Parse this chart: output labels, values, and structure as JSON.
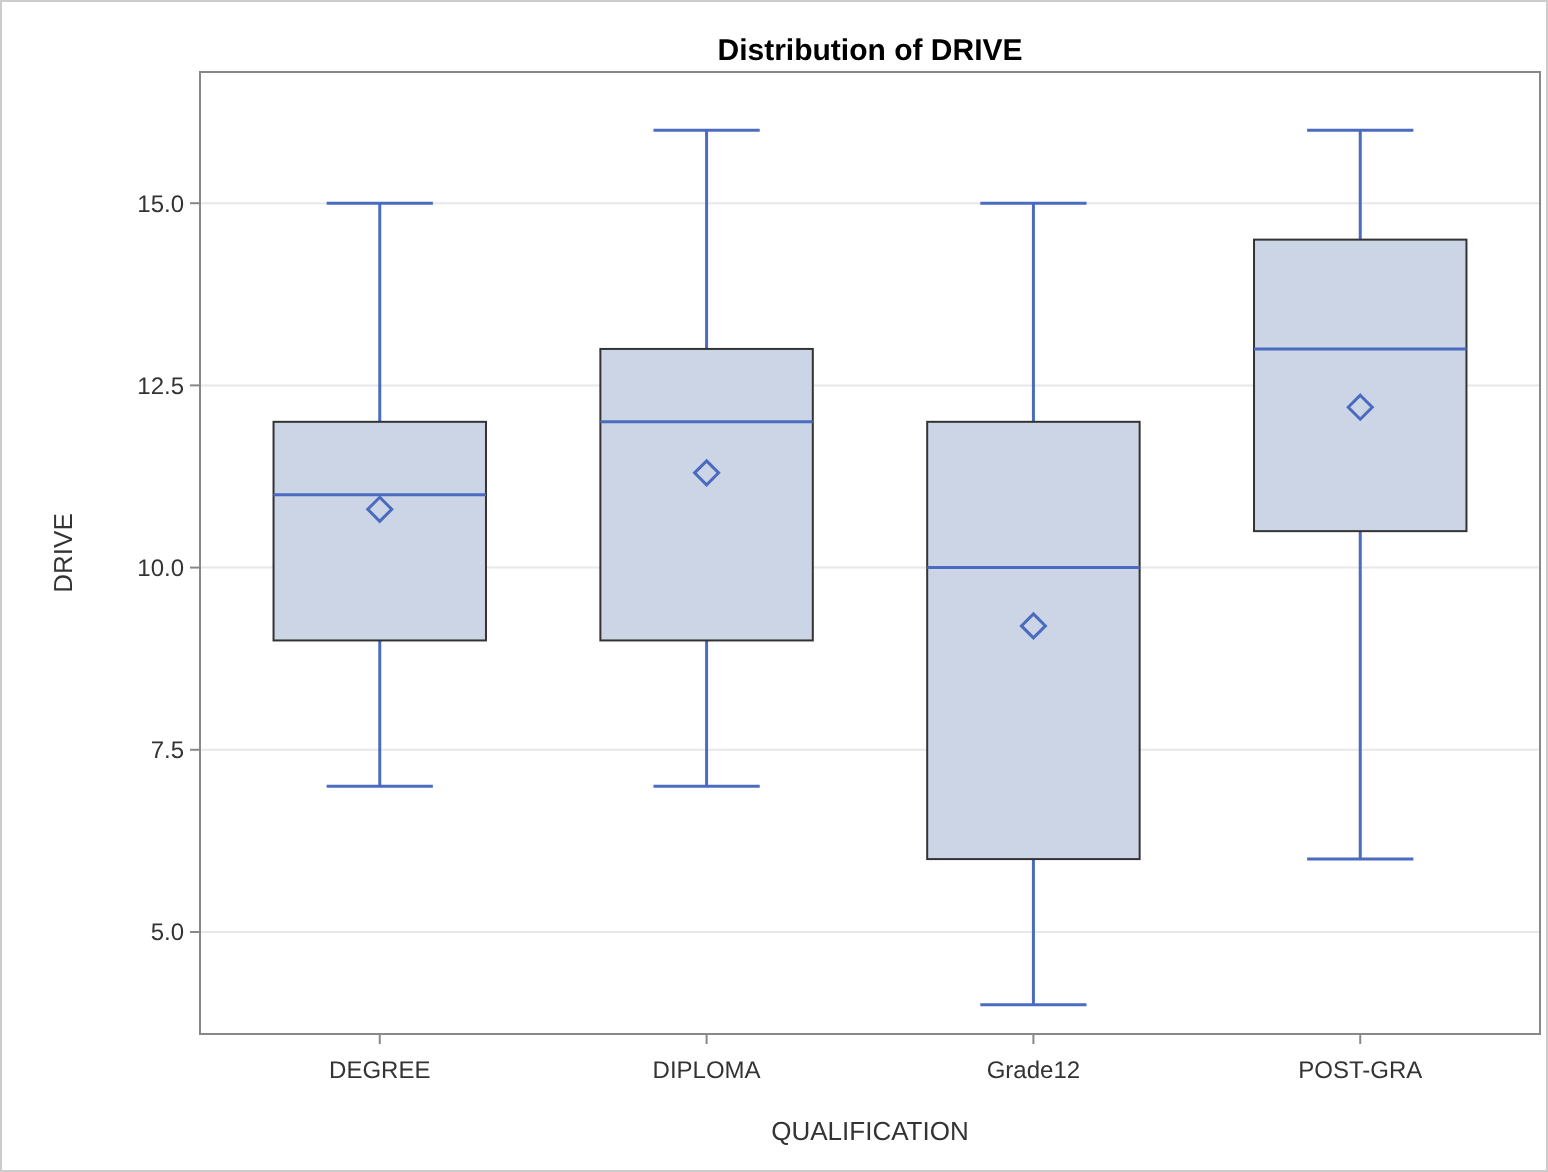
{
  "chart_data": {
    "type": "box",
    "title": "Distribution of DRIVE",
    "xlabel": "QUALIFICATION",
    "ylabel": "DRIVE",
    "categories": [
      "DEGREE",
      "DIPLOMA",
      "Grade12",
      "POST-GRA"
    ],
    "boxes": [
      {
        "low": 7,
        "q1": 9,
        "median": 11,
        "q3": 12,
        "high": 15,
        "mean": 10.8
      },
      {
        "low": 7,
        "q1": 9,
        "median": 12,
        "q3": 13,
        "high": 16,
        "mean": 11.3
      },
      {
        "low": 4,
        "q1": 6,
        "median": 10,
        "q3": 12,
        "high": 15,
        "mean": 9.2
      },
      {
        "low": 6,
        "q1": 10.5,
        "median": 13,
        "q3": 14.5,
        "high": 16,
        "mean": 12.2
      }
    ],
    "color": "#cbd5e5",
    "ylim": [
      3.6,
      16.8
    ],
    "yticks": [
      {
        "value": 5,
        "label": "5.0"
      },
      {
        "value": 7.5,
        "label": "7.5"
      },
      {
        "value": 10,
        "label": "10.0"
      },
      {
        "value": 12.5,
        "label": "12.5"
      },
      {
        "value": 15,
        "label": "15.0"
      }
    ],
    "grid": "y",
    "marker": "diamond"
  }
}
